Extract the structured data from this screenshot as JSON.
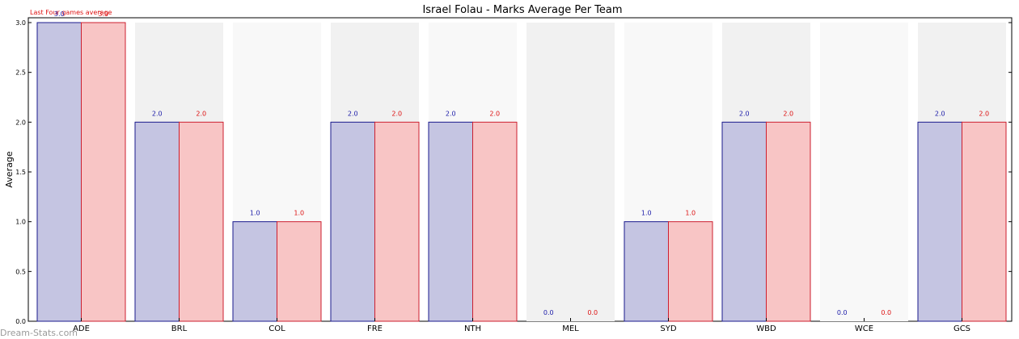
{
  "chart_data": {
    "type": "bar",
    "title": "Israel Folau - Marks Average Per Team",
    "xlabel": "",
    "ylabel": "Average",
    "ylim": [
      0,
      3.0
    ],
    "yticks": [
      "0.0",
      "0.5",
      "1.0",
      "1.5",
      "2.0",
      "2.5",
      "3.0"
    ],
    "categories": [
      "ADE",
      "BRL",
      "COL",
      "FRE",
      "NTH",
      "MEL",
      "SYD",
      "WBD",
      "WCE",
      "GCS"
    ],
    "series": [
      {
        "values": [
          3.0,
          2.0,
          1.0,
          2.0,
          2.0,
          0.0,
          1.0,
          2.0,
          0.0,
          2.0
        ]
      },
      {
        "name": "Last Four games average",
        "values": [
          3.0,
          2.0,
          1.0,
          2.0,
          2.0,
          0.0,
          1.0,
          2.0,
          0.0,
          2.0
        ]
      }
    ],
    "data_labels": [
      [
        "3.0",
        "2.0",
        "1.0",
        "2.0",
        "2.0",
        "0.0",
        "1.0",
        "2.0",
        "0.0",
        "2.0"
      ],
      [
        "3.0",
        "2.0",
        "1.0",
        "2.0",
        "2.0",
        "0.0",
        "1.0",
        "2.0",
        "0.0",
        "2.0"
      ]
    ],
    "legend": "top-left",
    "colors": {
      "series1_fill": "#c5c5e2",
      "series1_edge": "#1a1a8c",
      "series1_label": "#1a1aa8",
      "series2_fill": "#f8c5c5",
      "series2_edge": "#cc1f2f",
      "series2_label": "#dd1111",
      "band_dark": "#f1f1f1",
      "band_light": "#f8f8f8"
    }
  },
  "watermark": "Dream-Stats.com"
}
